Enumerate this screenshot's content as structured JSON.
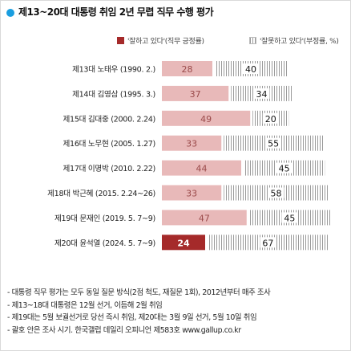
{
  "chart_data": {
    "type": "bar",
    "title": "제13~20대 대통령 취임 2년 무렵 직무 수행 평가",
    "categories": [
      "제13대 노태우 (1990. 2.)",
      "제14대 김영삼 (1995. 3.)",
      "제15대 김대중 (2000. 2.24)",
      "제16대 노무현 (2005. 1.27)",
      "제17대 이명박 (2010. 2.22)",
      "제18대 박근혜 (2015. 2.24~26)",
      "제19대 문재인 (2019. 5. 7~9)",
      "제20대 윤석열 (2024. 5. 7~9)"
    ],
    "series": [
      {
        "name": "'잘하고 있다'(직무 긍정률)",
        "values": [
          28,
          37,
          49,
          33,
          44,
          33,
          47,
          24
        ]
      },
      {
        "name": "'잘못하고 있다'(부정률, %)",
        "values": [
          40,
          34,
          20,
          55,
          45,
          58,
          45,
          67
        ]
      }
    ],
    "xlim": [
      0,
      100
    ],
    "highlight_index": 7,
    "notes": [
      "- 대통령 직무 평가는 모두 동일 질문 방식(2점 척도, 재질문 1회), 2012년부터 매주 조사",
      "- 제13~18대 대통령은 12월 선거, 이듬해 2월 취임",
      "- 제19대는 5월 보궐선거로 당선 즉시 취임, 제20대는 3월 9일 선거, 5월 10일 취임",
      "- 괄호 안은 조사 시기. 한국갤럽 데일리 오피니언 제583호 www.gallup.co.kr"
    ],
    "colors": {
      "positive": "#e8b9b9",
      "positive_highlight": "#a52a2a",
      "positive_text": "#9a4a4a",
      "positive_highlight_text": "#ffffff",
      "negative_stripe": "#9a9a9a",
      "negative_text": "#111111",
      "title_dot": "#1a9ee0"
    }
  }
}
